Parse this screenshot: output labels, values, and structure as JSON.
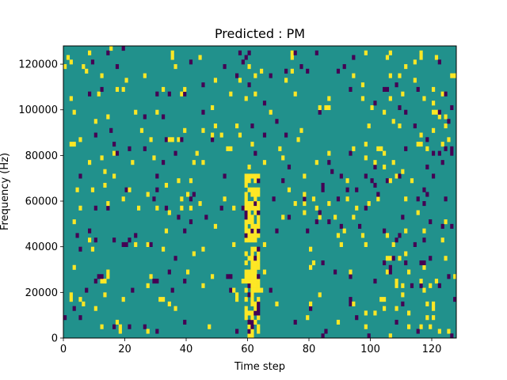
{
  "chart_data": {
    "type": "heatmap",
    "title": "Predicted : PM",
    "xlabel": "Time step",
    "ylabel": "Frequency (Hz)",
    "xlim": [
      0,
      128
    ],
    "ylim": [
      0,
      128000
    ],
    "x_ticks": [
      "0",
      "20",
      "40",
      "60",
      "80",
      "100",
      "120"
    ],
    "y_ticks": [
      "0",
      "20000",
      "40000",
      "60000",
      "80000",
      "100000",
      "120000"
    ],
    "grid": false,
    "colormap": "viridis",
    "cell_counts": {
      "time_steps": 128,
      "frequency_bins": 64
    },
    "value_levels": [
      -1,
      0,
      1
    ],
    "colors": {
      "low": "#440154",
      "mid": "#21918c",
      "high": "#fde725"
    },
    "seed": 7
  }
}
